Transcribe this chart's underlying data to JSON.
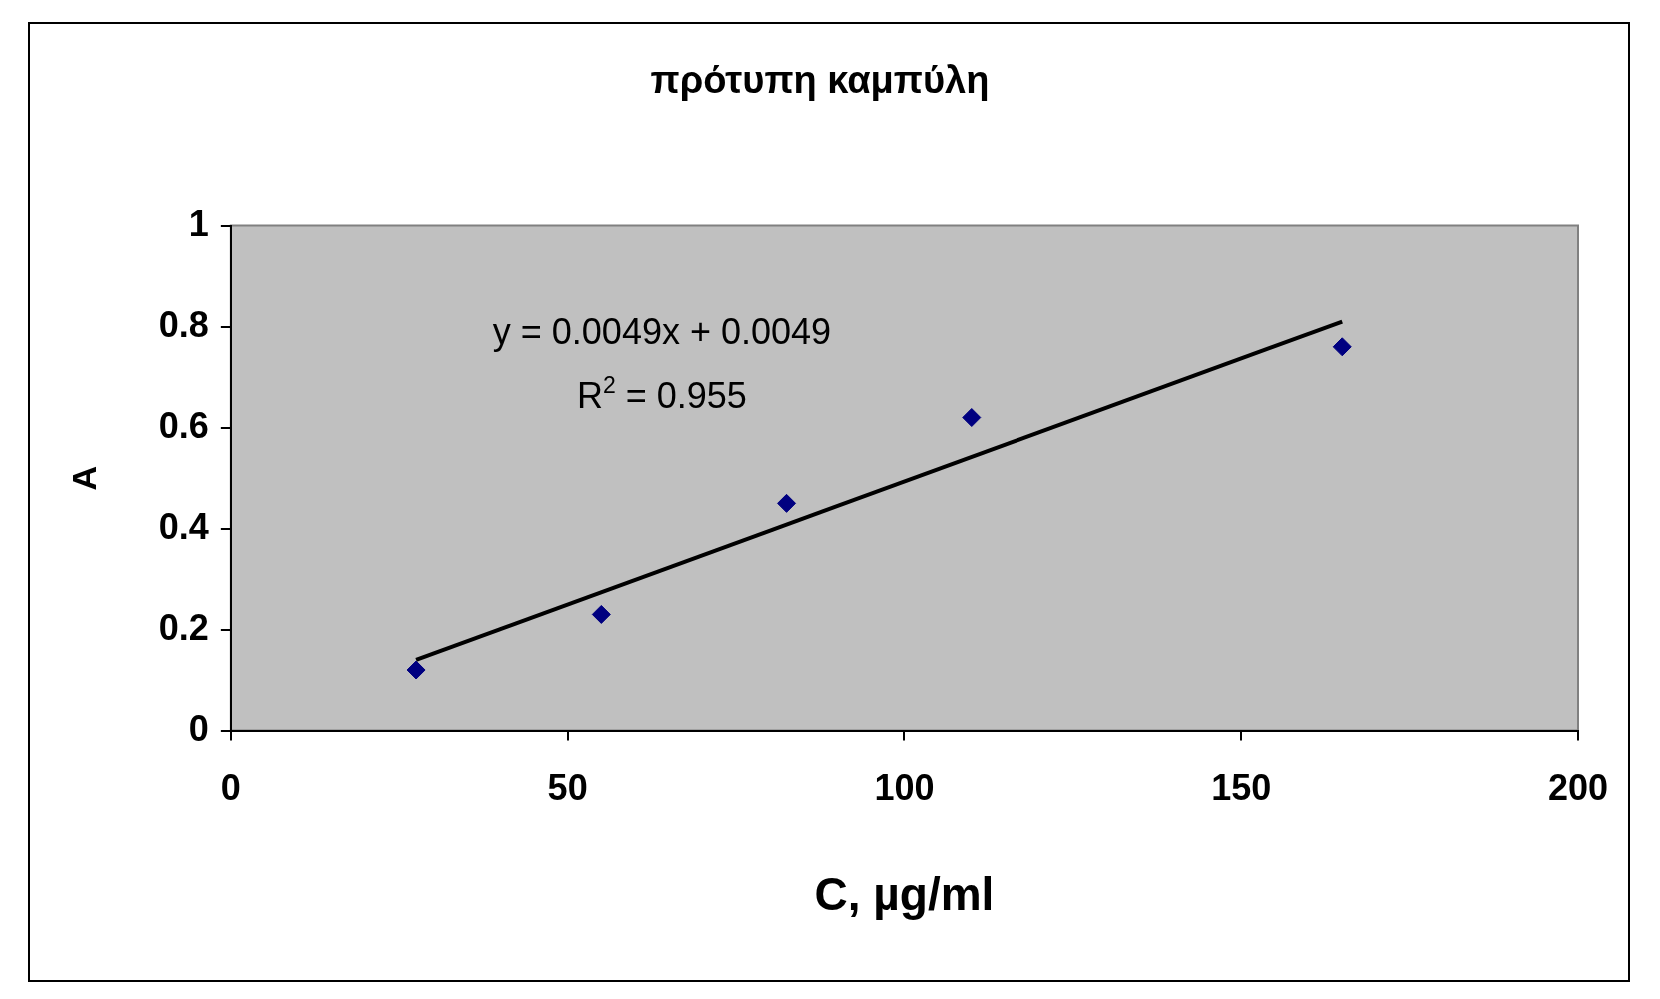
{
  "chart_data": {
    "type": "scatter",
    "title": "πρότυπη καμπύλη",
    "xlabel": "C, µg/ml",
    "ylabel": "A",
    "series": [
      {
        "color": "#000080",
        "marker": "diamond",
        "x": [
          27.5,
          55,
          82.5,
          110,
          165
        ],
        "values": [
          0.12,
          0.23,
          0.45,
          0.62,
          0.76
        ]
      },
      {
        "type": "line",
        "color": "#000000",
        "marker": "none",
        "x": [
          27.5,
          165
        ],
        "values": [
          0.14,
          0.81
        ]
      }
    ],
    "xlim": [
      0,
      200
    ],
    "xticks": [
      0,
      50,
      100,
      150,
      200
    ],
    "ylim": [
      0,
      1
    ],
    "yticks": [
      0,
      0.2,
      0.4,
      0.6,
      0.8,
      1
    ],
    "annotations": [
      "y = 0.0049x + 0.0049",
      "R$^{2}$ = 0.955"
    ],
    "grid": false,
    "legend": false,
    "line_style": "solid"
  }
}
